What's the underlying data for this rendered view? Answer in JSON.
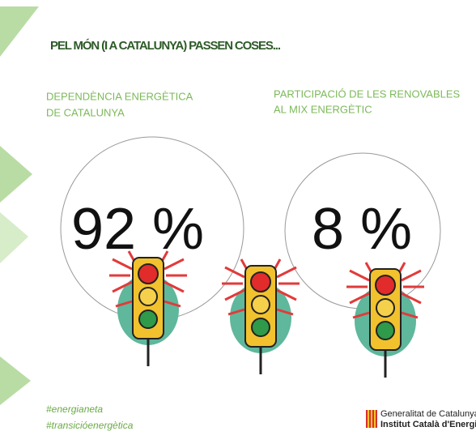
{
  "header": {
    "title": "PEL MÓN (I A CATALUNYA) PASSEN COSES..."
  },
  "panels": [
    {
      "heading": [
        "DEPENDÈNCIA ENERGÈTICA",
        "DE CATALUNYA"
      ],
      "value": "92 %"
    },
    {
      "heading": [
        "PARTICIPACIÓ DE LES RENOVABLES",
        "AL MIX ENERGÈTIC"
      ],
      "value": "8 %"
    }
  ],
  "hashtags": [
    "#energianeta",
    "#transicióenergètica"
  ],
  "logo": {
    "line1": "Generalitat de Catalunya",
    "line2": "Institut Català d'Energia"
  }
}
